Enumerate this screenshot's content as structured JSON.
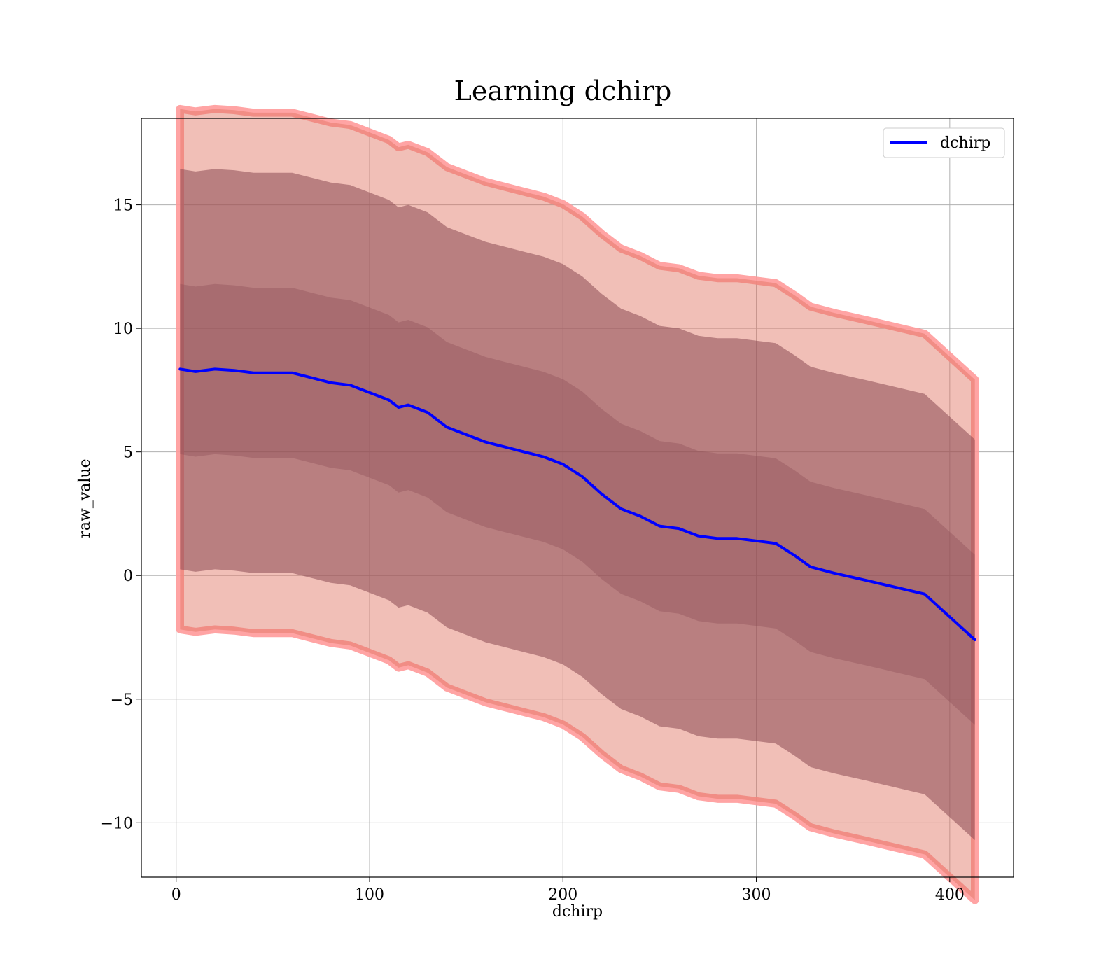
{
  "chart_data": {
    "type": "area",
    "title": "Learning dchirp",
    "xlabel": "dchirp",
    "ylabel": "raw_value",
    "xlim": [
      -18,
      433
    ],
    "ylim": [
      -12.2,
      18.5
    ],
    "xticks": [
      0,
      100,
      200,
      300,
      400
    ],
    "yticks": [
      -10,
      -5,
      0,
      5,
      10,
      15
    ],
    "xtick_labels": [
      "0",
      "100",
      "200",
      "300",
      "400"
    ],
    "ytick_labels": [
      "−10",
      "−5",
      "0",
      "5",
      "10",
      "15"
    ],
    "grid": true,
    "legend": {
      "placement": "top-right",
      "entries": [
        "dchirp"
      ]
    },
    "x": [
      2,
      10,
      20,
      30,
      40,
      50,
      60,
      70,
      80,
      90,
      100,
      110,
      115,
      120,
      130,
      140,
      150,
      160,
      170,
      180,
      190,
      200,
      210,
      220,
      230,
      240,
      250,
      260,
      270,
      280,
      290,
      300,
      310,
      320,
      328,
      340,
      357,
      387,
      413
    ],
    "mean": [
      8.35,
      8.25,
      8.35,
      8.3,
      8.2,
      8.2,
      8.2,
      8.0,
      7.8,
      7.7,
      7.4,
      7.1,
      6.8,
      6.9,
      6.6,
      6.0,
      5.7,
      5.4,
      5.2,
      5.0,
      4.8,
      4.5,
      4.0,
      3.3,
      2.7,
      2.4,
      2.0,
      1.9,
      1.6,
      1.5,
      1.5,
      1.4,
      1.3,
      0.8,
      0.35,
      0.1,
      -0.2,
      -0.75,
      -2.6
    ],
    "series": [
      {
        "name": "dchirp",
        "color": "#0000ff",
        "kind": "line"
      },
      {
        "kind": "band",
        "sigma": 2.6,
        "color": "#e07060",
        "opacity": 0.45,
        "edge_color": "#ff9a9a",
        "edge_width": 0.27
      },
      {
        "kind": "band",
        "sigma": 2.0,
        "color": "#8a4a54",
        "opacity": 0.55
      },
      {
        "kind": "band",
        "sigma": 0.85,
        "color": "#8a4a54",
        "opacity": 0.35
      }
    ],
    "band_sd": 4.05
  }
}
